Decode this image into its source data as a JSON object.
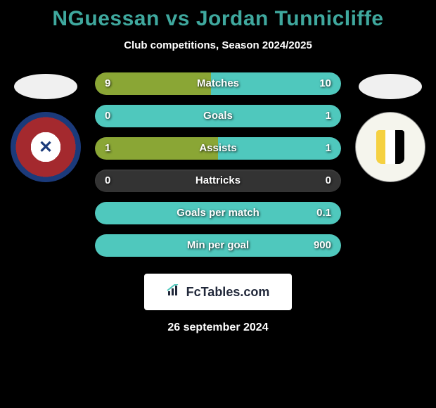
{
  "title": "NGuessan vs Jordan Tunnicliffe",
  "subtitle": "Club competitions, Season 2024/2025",
  "footer_logo_text": "FcTables.com",
  "footer_date": "26 september 2024",
  "colors": {
    "background": "#000000",
    "title": "#3fa89e",
    "left_fill": "#8aa635",
    "right_fill": "#4fc8bd",
    "bar_bg": "#333333",
    "text": "#ffffff"
  },
  "stats": [
    {
      "label": "Matches",
      "left_value": "9",
      "right_value": "10",
      "left_pct": 47,
      "right_pct": 53
    },
    {
      "label": "Goals",
      "left_value": "0",
      "right_value": "1",
      "left_pct": 0,
      "right_pct": 100
    },
    {
      "label": "Assists",
      "left_value": "1",
      "right_value": "1",
      "left_pct": 50,
      "right_pct": 50
    },
    {
      "label": "Hattricks",
      "left_value": "0",
      "right_value": "0",
      "left_pct": 0,
      "right_pct": 0
    },
    {
      "label": "Goals per match",
      "left_value": "",
      "right_value": "0.1",
      "left_pct": 0,
      "right_pct": 100
    },
    {
      "label": "Min per goal",
      "left_value": "",
      "right_value": "900",
      "left_pct": 0,
      "right_pct": 100
    }
  ]
}
